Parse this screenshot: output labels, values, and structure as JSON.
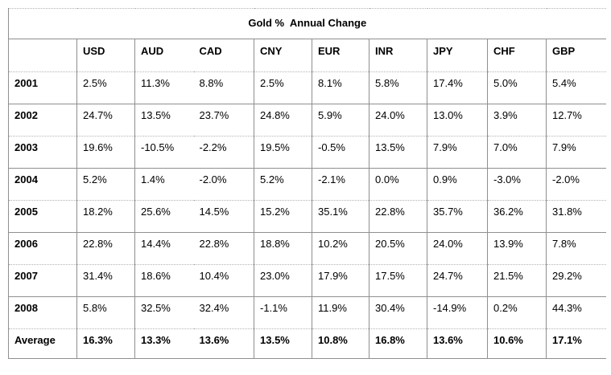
{
  "title": "Gold %  Annual Change",
  "table": {
    "corner_label": "",
    "columns": [
      "USD",
      "AUD",
      "CAD",
      "CNY",
      "EUR",
      "INR",
      "JPY",
      "CHF",
      "GBP"
    ],
    "rows": [
      {
        "label": "2001",
        "values": [
          "2.5%",
          "11.3%",
          "8.8%",
          "2.5%",
          "8.1%",
          "5.8%",
          "17.4%",
          "5.0%",
          "5.4%"
        ]
      },
      {
        "label": "2002",
        "values": [
          "24.7%",
          "13.5%",
          "23.7%",
          "24.8%",
          "5.9%",
          "24.0%",
          "13.0%",
          "3.9%",
          "12.7%"
        ]
      },
      {
        "label": "2003",
        "values": [
          "19.6%",
          "-10.5%",
          "-2.2%",
          "19.5%",
          "-0.5%",
          "13.5%",
          "7.9%",
          "7.0%",
          "7.9%"
        ]
      },
      {
        "label": "2004",
        "values": [
          "5.2%",
          "1.4%",
          "-2.0%",
          "5.2%",
          "-2.1%",
          "0.0%",
          "0.9%",
          "-3.0%",
          "-2.0%"
        ]
      },
      {
        "label": "2005",
        "values": [
          "18.2%",
          "25.6%",
          "14.5%",
          "15.2%",
          "35.1%",
          "22.8%",
          "35.7%",
          "36.2%",
          "31.8%"
        ]
      },
      {
        "label": "2006",
        "values": [
          "22.8%",
          "14.4%",
          "22.8%",
          "18.8%",
          "10.2%",
          "20.5%",
          "24.0%",
          "13.9%",
          "7.8%"
        ]
      },
      {
        "label": "2007",
        "values": [
          "31.4%",
          "18.6%",
          "10.4%",
          "23.0%",
          "17.9%",
          "17.5%",
          "24.7%",
          "21.5%",
          "29.2%"
        ]
      },
      {
        "label": "2008",
        "values": [
          "5.8%",
          "32.5%",
          "32.4%",
          "-1.1%",
          "11.9%",
          "30.4%",
          "-14.9%",
          "0.2%",
          "44.3%"
        ]
      },
      {
        "label": "Average",
        "values": [
          "16.3%",
          "13.3%",
          "13.6%",
          "13.5%",
          "10.8%",
          "16.8%",
          "13.6%",
          "10.6%",
          "17.1%"
        ],
        "bold": true
      }
    ]
  },
  "chart_data": {
    "type": "table",
    "title": "Gold %  Annual Change",
    "columns": [
      "USD",
      "AUD",
      "CAD",
      "CNY",
      "EUR",
      "INR",
      "JPY",
      "CHF",
      "GBP"
    ],
    "row_labels": [
      "2001",
      "2002",
      "2003",
      "2004",
      "2005",
      "2006",
      "2007",
      "2008",
      "Average"
    ],
    "unit": "percent",
    "values": [
      [
        2.5,
        11.3,
        8.8,
        2.5,
        8.1,
        5.8,
        17.4,
        5.0,
        5.4
      ],
      [
        24.7,
        13.5,
        23.7,
        24.8,
        5.9,
        24.0,
        13.0,
        3.9,
        12.7
      ],
      [
        19.6,
        -10.5,
        -2.2,
        19.5,
        -0.5,
        13.5,
        7.9,
        7.0,
        7.9
      ],
      [
        5.2,
        1.4,
        -2.0,
        5.2,
        -2.1,
        0.0,
        0.9,
        -3.0,
        -2.0
      ],
      [
        18.2,
        25.6,
        14.5,
        15.2,
        35.1,
        22.8,
        35.7,
        36.2,
        31.8
      ],
      [
        22.8,
        14.4,
        22.8,
        18.8,
        10.2,
        20.5,
        24.0,
        13.9,
        7.8
      ],
      [
        31.4,
        18.6,
        10.4,
        23.0,
        17.9,
        17.5,
        24.7,
        21.5,
        29.2
      ],
      [
        5.8,
        32.5,
        32.4,
        -1.1,
        11.9,
        30.4,
        -14.9,
        0.2,
        44.3
      ],
      [
        16.3,
        13.3,
        13.6,
        13.5,
        10.8,
        16.8,
        13.6,
        10.6,
        17.1
      ]
    ]
  }
}
